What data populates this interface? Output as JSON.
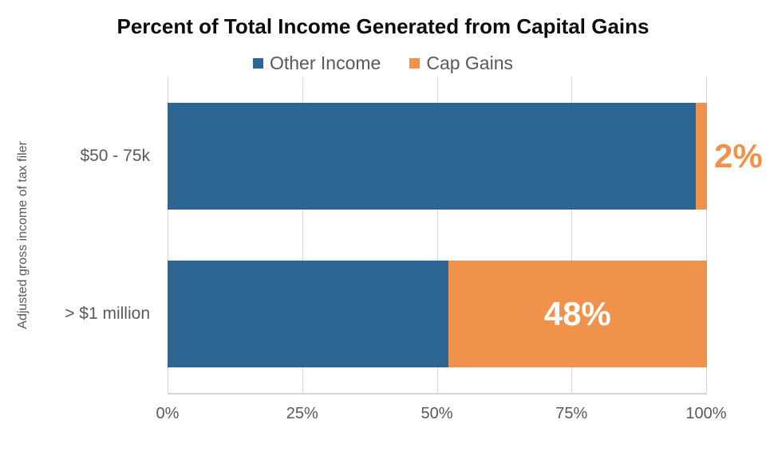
{
  "chart_data": {
    "type": "bar",
    "orientation": "horizontal",
    "stacked": true,
    "title": "Percent of Total Income Generated from Capital Gains",
    "ylabel": "Adjusted gross income of tax filer",
    "xlabel": "",
    "categories": [
      "$50 - 75k",
      "> $1 million"
    ],
    "series": [
      {
        "name": "Other Income",
        "color": "#2d6595",
        "values": [
          98,
          52
        ]
      },
      {
        "name": "Cap Gains",
        "color": "#f0924b",
        "values": [
          2,
          48
        ]
      }
    ],
    "value_labels": [
      {
        "text": "2%",
        "placement": "outside",
        "color": "#f0924b"
      },
      {
        "text": "48%",
        "placement": "inside",
        "color": "#ffffff"
      }
    ],
    "x_ticks": [
      "0%",
      "25%",
      "50%",
      "75%",
      "100%"
    ],
    "x_tick_values": [
      0,
      25,
      50,
      75,
      100
    ],
    "xlim": [
      0,
      100
    ],
    "grid": true,
    "legend_position": "top"
  },
  "colors": {
    "title_text": "#0d0d0d",
    "axis_text": "#595959",
    "gridline": "#d9d9d9",
    "axis_line": "#d6d6d6",
    "background": "#ffffff"
  }
}
